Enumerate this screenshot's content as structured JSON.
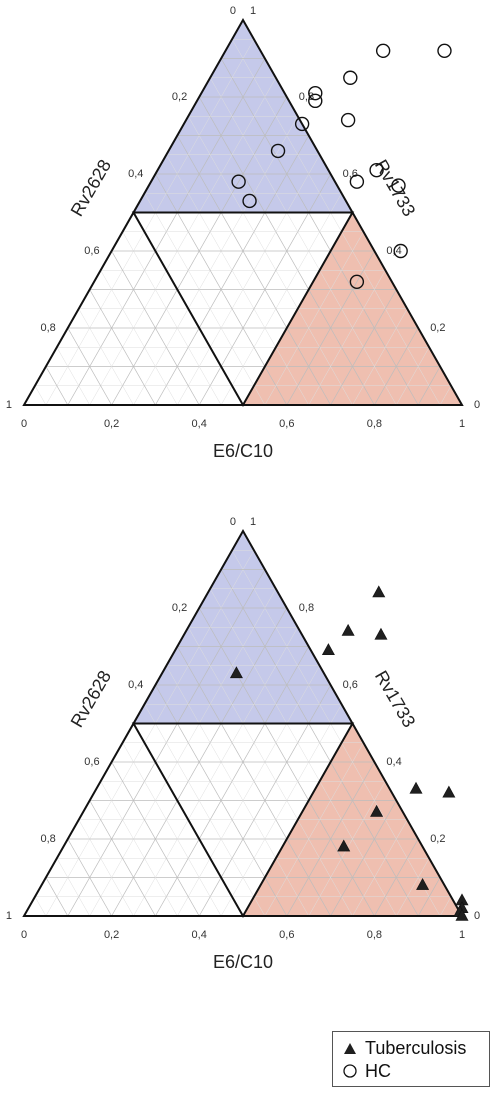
{
  "chart_data": [
    {
      "type": "scatter",
      "subtype": "ternary",
      "axes": {
        "bottom": {
          "label": "E6/C10",
          "ticks": [
            "0",
            "0,2",
            "0,4",
            "0,6",
            "0,8",
            "1"
          ]
        },
        "left": {
          "label": "Rv2628",
          "ticks": [
            "0",
            "0,2",
            "0,4",
            "0,6",
            "0,8",
            "1"
          ]
        },
        "right": {
          "label": "Rv1733",
          "ticks": [
            "1",
            "0,8",
            "0,6",
            "0,4",
            "0,2",
            "0"
          ]
        }
      },
      "grid_step": 0.1,
      "grid": true,
      "regions": [
        {
          "name": "Rv1733 > 0.5",
          "color": "#c5c9ea"
        },
        {
          "name": "E6/C10 > 0.5",
          "color": "#efbfb0"
        }
      ],
      "series": [
        {
          "name": "HC",
          "marker": "circle",
          "points": [
            {
              "e6c10": 0.36,
              "rv1733": 0.92
            },
            {
              "e6c10": 0.5,
              "rv1733": 0.92
            },
            {
              "e6c10": 0.32,
              "rv1733": 0.85
            },
            {
              "e6c10": 0.26,
              "rv1733": 0.81
            },
            {
              "e6c10": 0.27,
              "rv1733": 0.79
            },
            {
              "e6c10": 0.27,
              "rv1733": 0.73
            },
            {
              "e6c10": 0.37,
              "rv1733": 0.74
            },
            {
              "e6c10": 0.25,
              "rv1733": 0.66
            },
            {
              "e6c10": 0.5,
              "rv1733": 0.61
            },
            {
              "e6c10": 0.47,
              "rv1733": 0.58
            },
            {
              "e6c10": 0.2,
              "rv1733": 0.58
            },
            {
              "e6c10": 0.57,
              "rv1733": 0.57
            },
            {
              "e6c10": 0.25,
              "rv1733": 0.53
            },
            {
              "e6c10": 0.66,
              "rv1733": 0.4
            },
            {
              "e6c10": 0.6,
              "rv1733": 0.32
            }
          ]
        },
        {
          "name": "Tuberculosis",
          "marker": "triangle",
          "points": [
            {
              "e6c10": 0.39,
              "rv1733": 0.84
            },
            {
              "e6c10": 0.37,
              "rv1733": 0.74
            },
            {
              "e6c10": 0.45,
              "rv1733": 0.73
            },
            {
              "e6c10": 0.35,
              "rv1733": 0.69
            },
            {
              "e6c10": 0.17,
              "rv1733": 0.63
            },
            {
              "e6c10": 0.73,
              "rv1733": 0.33
            },
            {
              "e6c10": 0.81,
              "rv1733": 0.32
            },
            {
              "e6c10": 0.67,
              "rv1733": 0.27
            },
            {
              "e6c10": 0.64,
              "rv1733": 0.18
            },
            {
              "e6c10": 0.87,
              "rv1733": 0.08
            },
            {
              "e6c10": 0.98,
              "rv1733": 0.04
            },
            {
              "e6c10": 0.99,
              "rv1733": 0.02
            },
            {
              "e6c10": 0.99,
              "rv1733": 0.01
            },
            {
              "e6c10": 1.0,
              "rv1733": 0.0
            }
          ]
        }
      ]
    }
  ],
  "legend": {
    "position": "bottom-right",
    "items": [
      {
        "label": "Tuberculosis",
        "marker": "triangle"
      },
      {
        "label": "HC",
        "marker": "circle"
      }
    ]
  }
}
